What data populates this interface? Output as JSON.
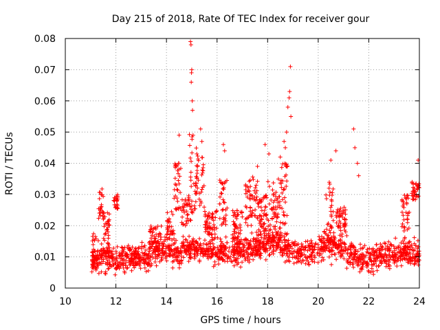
{
  "chart_data": {
    "type": "scatter",
    "title": "Day 215 of 2018, Rate Of TEC Index for receiver gour",
    "xlabel": "GPS time / hours",
    "ylabel": "ROTI / TECUs",
    "xlim": [
      10,
      24
    ],
    "ylim": [
      0,
      0.08
    ],
    "x_ticks": [
      10,
      12,
      14,
      16,
      18,
      20,
      22,
      24
    ],
    "x_tick_labels": [
      "10",
      "12",
      "14",
      "16",
      "18",
      "20",
      "22",
      "24"
    ],
    "y_ticks": [
      0,
      0.01,
      0.02,
      0.03,
      0.04,
      0.05,
      0.06,
      0.07,
      0.08
    ],
    "y_tick_labels": [
      "0",
      "0.01",
      "0.02",
      "0.03",
      "0.04",
      "0.05",
      "0.06",
      "0.07",
      "0.08"
    ],
    "grid": true,
    "marker": "+",
    "marker_color": "#ff0000",
    "series": [
      {
        "name": "ROTI",
        "x_start": 11.05,
        "x_end": 24.0,
        "baseline_profile": [
          [
            11.05,
            0.009
          ],
          [
            11.5,
            0.01
          ],
          [
            12.0,
            0.009
          ],
          [
            12.5,
            0.01
          ],
          [
            13.0,
            0.009
          ],
          [
            13.5,
            0.011
          ],
          [
            14.0,
            0.012
          ],
          [
            14.5,
            0.011
          ],
          [
            15.0,
            0.013
          ],
          [
            15.5,
            0.012
          ],
          [
            16.0,
            0.012
          ],
          [
            16.5,
            0.011
          ],
          [
            17.0,
            0.012
          ],
          [
            17.5,
            0.013
          ],
          [
            18.0,
            0.015
          ],
          [
            18.5,
            0.014
          ],
          [
            19.0,
            0.012
          ],
          [
            19.5,
            0.011
          ],
          [
            20.0,
            0.013
          ],
          [
            20.5,
            0.014
          ],
          [
            21.0,
            0.013
          ],
          [
            21.5,
            0.01
          ],
          [
            22.0,
            0.009
          ],
          [
            22.5,
            0.01
          ],
          [
            23.0,
            0.011
          ],
          [
            23.5,
            0.012
          ],
          [
            24.0,
            0.01
          ]
        ],
        "clusters": [
          {
            "x_from": 11.05,
            "x_to": 11.25,
            "y_from": 0.005,
            "y_to": 0.018
          },
          {
            "x_from": 11.3,
            "x_to": 11.5,
            "y_from": 0.02,
            "y_to": 0.032
          },
          {
            "x_from": 11.5,
            "x_to": 11.75,
            "y_from": 0.015,
            "y_to": 0.025
          },
          {
            "x_from": 11.9,
            "x_to": 12.1,
            "y_from": 0.025,
            "y_to": 0.03
          },
          {
            "x_from": 13.3,
            "x_to": 13.8,
            "y_from": 0.012,
            "y_to": 0.02
          },
          {
            "x_from": 14.0,
            "x_to": 14.3,
            "y_from": 0.015,
            "y_to": 0.025
          },
          {
            "x_from": 14.3,
            "x_to": 14.6,
            "y_from": 0.025,
            "y_to": 0.041
          },
          {
            "x_from": 14.6,
            "x_to": 14.9,
            "y_from": 0.02,
            "y_to": 0.03
          },
          {
            "x_from": 14.9,
            "x_to": 15.1,
            "y_from": 0.02,
            "y_to": 0.05
          },
          {
            "x_from": 15.1,
            "x_to": 15.5,
            "y_from": 0.025,
            "y_to": 0.045
          },
          {
            "x_from": 15.5,
            "x_to": 16.0,
            "y_from": 0.015,
            "y_to": 0.025
          },
          {
            "x_from": 16.1,
            "x_to": 16.4,
            "y_from": 0.02,
            "y_to": 0.035
          },
          {
            "x_from": 16.6,
            "x_to": 17.0,
            "y_from": 0.015,
            "y_to": 0.025
          },
          {
            "x_from": 17.1,
            "x_to": 17.6,
            "y_from": 0.02,
            "y_to": 0.036
          },
          {
            "x_from": 17.6,
            "x_to": 18.0,
            "y_from": 0.018,
            "y_to": 0.03
          },
          {
            "x_from": 18.0,
            "x_to": 18.5,
            "y_from": 0.015,
            "y_to": 0.035
          },
          {
            "x_from": 18.5,
            "x_to": 18.8,
            "y_from": 0.02,
            "y_to": 0.04
          },
          {
            "x_from": 20.3,
            "x_to": 20.6,
            "y_from": 0.015,
            "y_to": 0.035
          },
          {
            "x_from": 20.7,
            "x_to": 21.1,
            "y_from": 0.018,
            "y_to": 0.026
          },
          {
            "x_from": 23.3,
            "x_to": 23.6,
            "y_from": 0.015,
            "y_to": 0.03
          },
          {
            "x_from": 23.7,
            "x_to": 24.0,
            "y_from": 0.028,
            "y_to": 0.034
          }
        ],
        "outliers": [
          [
            14.5,
            0.049
          ],
          [
            14.95,
            0.079
          ],
          [
            14.97,
            0.078
          ],
          [
            14.99,
            0.069
          ],
          [
            15.0,
            0.07
          ],
          [
            14.98,
            0.066
          ],
          [
            15.02,
            0.06
          ],
          [
            15.03,
            0.057
          ],
          [
            15.05,
            0.049
          ],
          [
            15.2,
            0.043
          ],
          [
            15.35,
            0.051
          ],
          [
            15.4,
            0.047
          ],
          [
            16.25,
            0.046
          ],
          [
            16.3,
            0.044
          ],
          [
            17.6,
            0.039
          ],
          [
            17.9,
            0.046
          ],
          [
            18.05,
            0.043
          ],
          [
            18.5,
            0.042
          ],
          [
            18.65,
            0.047
          ],
          [
            18.7,
            0.045
          ],
          [
            18.75,
            0.05
          ],
          [
            18.8,
            0.058
          ],
          [
            18.85,
            0.061
          ],
          [
            18.87,
            0.063
          ],
          [
            18.9,
            0.071
          ],
          [
            18.92,
            0.055
          ],
          [
            20.5,
            0.041
          ],
          [
            20.7,
            0.044
          ],
          [
            21.4,
            0.051
          ],
          [
            21.45,
            0.045
          ],
          [
            21.55,
            0.04
          ],
          [
            21.6,
            0.036
          ],
          [
            23.95,
            0.041
          ]
        ]
      }
    ]
  }
}
